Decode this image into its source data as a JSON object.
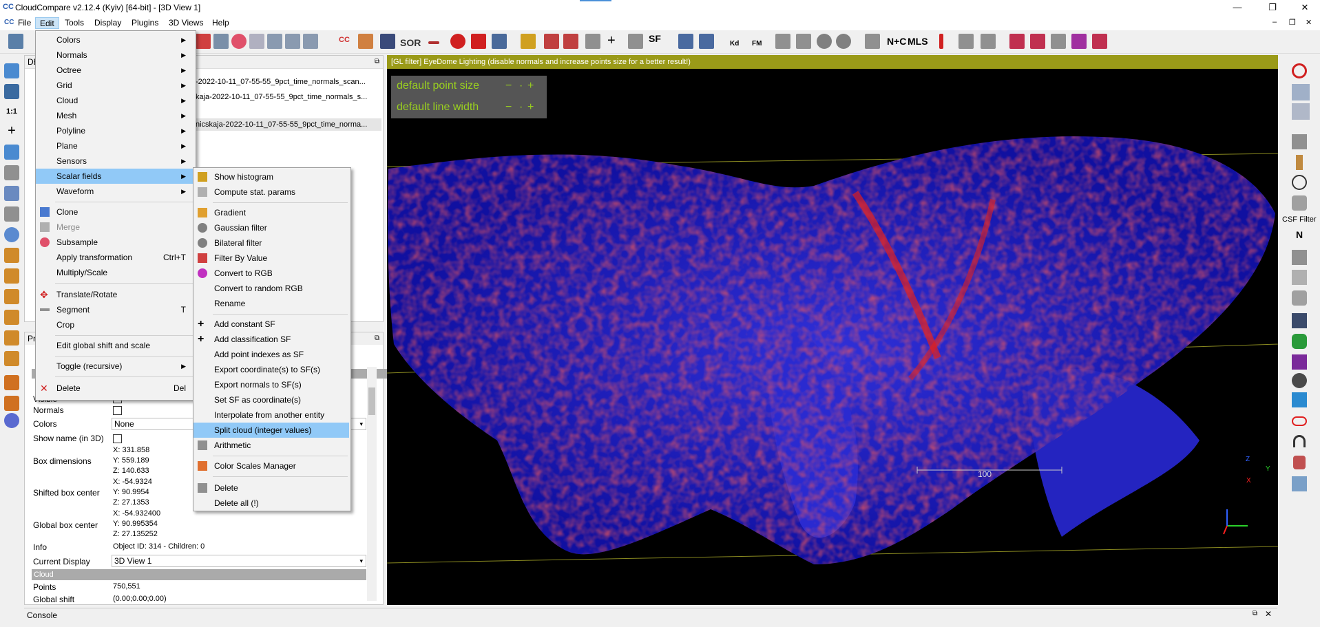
{
  "window": {
    "title": "CloudCompare v2.12.4 (Kyiv) [64-bit] - [3D View 1]",
    "logo": "CC",
    "controls": [
      "—",
      "❐",
      "✕"
    ],
    "mdi_controls": [
      "–",
      "❐",
      "✕"
    ]
  },
  "menubar": [
    "File",
    "Edit",
    "Tools",
    "Display",
    "Plugins",
    "3D Views",
    "Help"
  ],
  "toolbar_labels": {
    "sor": "SOR",
    "sf": "SF",
    "nc": "N+C",
    "mls": "MLS",
    "kd": "Kd",
    "fm": "FM",
    "cc": "CC"
  },
  "db_tree": {
    "header": "DB",
    "items": [
      "-2022-10-11_07-55-55_9pct_time_normals_scan...",
      "kaja-2022-10-11_07-55-55_9pct_time_normals_s...",
      "nicskaja-2022-10-11_07-55-55_9pct_time_norma..."
    ]
  },
  "properties": {
    "header": "Pr",
    "visible_label": "Visible",
    "normals_label": "Normals",
    "colors_label": "Colors",
    "colors_value": "None",
    "show_name_label": "Show name (in 3D)",
    "box_dims_label": "Box dimensions",
    "box_dims": [
      "X: 331.858",
      "Y: 559.189",
      "Z: 140.633"
    ],
    "shifted_center_label": "Shifted box center",
    "shifted_center": [
      "X: -54.9324",
      "Y: 90.9954",
      "Z: 27.1353"
    ],
    "global_center_label": "Global box center",
    "global_center": [
      "X: -54.932400",
      "Y: 90.995354",
      "Z: 27.135252"
    ],
    "info_label": "Info",
    "info_value": "Object ID: 314 - Children: 0",
    "current_display_label": "Current Display",
    "current_display_value": "3D View 1",
    "cloud_section": "Cloud",
    "points_label": "Points",
    "points_value": "750,551",
    "global_shift_label": "Global shift",
    "global_shift_value": "(0.00;0.00;0.00)"
  },
  "view3d": {
    "glfilter": "[GL filter] EyeDome Lighting (disable normals and increase points size for a better result!)",
    "point_size_label": "default point size",
    "line_width_label": "default line width",
    "scale_value": "100",
    "axis_labels": {
      "z": "Z",
      "y": "Y",
      "x": "X"
    }
  },
  "right_toolbar": {
    "csf_label": "CSF Filter"
  },
  "edit_menu": {
    "items": [
      {
        "label": "Colors",
        "submenu": true
      },
      {
        "label": "Normals",
        "submenu": true
      },
      {
        "label": "Octree",
        "submenu": true
      },
      {
        "label": "Grid",
        "submenu": true
      },
      {
        "label": "Cloud",
        "submenu": true
      },
      {
        "label": "Mesh",
        "submenu": true
      },
      {
        "label": "Polyline",
        "submenu": true
      },
      {
        "label": "Plane",
        "submenu": true
      },
      {
        "label": "Sensors",
        "submenu": true
      },
      {
        "label": "Scalar fields",
        "submenu": true
      },
      {
        "label": "Waveform",
        "submenu": true
      },
      {
        "label": "Clone"
      },
      {
        "label": "Merge"
      },
      {
        "label": "Subsample"
      },
      {
        "label": "Apply transformation",
        "shortcut": "Ctrl+T"
      },
      {
        "label": "Multiply/Scale"
      },
      {
        "label": "Translate/Rotate"
      },
      {
        "label": "Segment",
        "shortcut": "T"
      },
      {
        "label": "Crop"
      },
      {
        "label": "Edit global shift and scale"
      },
      {
        "label": "Toggle (recursive)",
        "submenu": true
      },
      {
        "label": "Delete",
        "shortcut": "Del"
      }
    ]
  },
  "sf_menu": {
    "items": [
      "Show histogram",
      "Compute stat. params",
      "Gradient",
      "Gaussian filter",
      "Bilateral filter",
      "Filter By Value",
      "Convert to RGB",
      "Convert to random RGB",
      "Rename",
      "Add constant SF",
      "Add classification SF",
      "Add point indexes as SF",
      "Export coordinate(s) to SF(s)",
      "Export normals to SF(s)",
      "Set SF as coordinate(s)",
      "Interpolate from another entity",
      "Split cloud (integer values)",
      "Arithmetic",
      "Color Scales Manager",
      "Delete",
      "Delete all (!)"
    ]
  },
  "console": {
    "title": "Console"
  },
  "colors": {
    "accent": "#91c9f7",
    "glbar": "#9a9a18",
    "hud_text": "#9ad01f",
    "cloud_blue": "#2a2ad8",
    "cloud_red": "#e0201c"
  }
}
